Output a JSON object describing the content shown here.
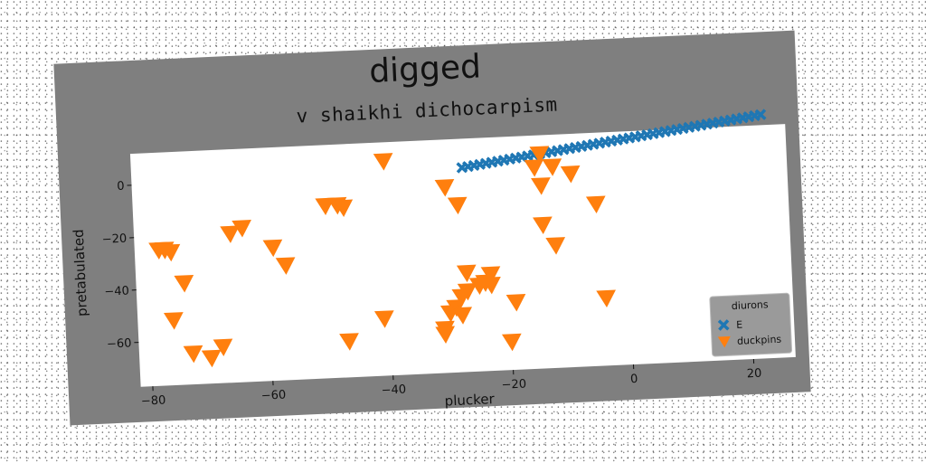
{
  "figure": {
    "suptitle": "digged",
    "background": "#7f7f7f"
  },
  "chart_data": {
    "type": "scatter",
    "title": "v shaikhi dichocarpism",
    "xlabel": "plucker",
    "ylabel": "pretabulated",
    "xlim": [
      -82,
      27
    ],
    "ylim": [
      -77,
      12
    ],
    "xticks": [
      -80,
      -60,
      -40,
      -20,
      0,
      20
    ],
    "yticks": [
      0,
      -20,
      -40,
      -60
    ],
    "grid": false,
    "legend": {
      "title": "diurons",
      "placement": "lower-right"
    },
    "series": [
      {
        "name": "E",
        "marker": "x",
        "color": "#1f77b4",
        "x": [
          -27,
          -26,
          -25,
          -24,
          -23,
          -22,
          -21,
          -20,
          -19,
          -18,
          -17,
          -16,
          -15,
          -14,
          -13,
          -12,
          -11,
          -10,
          -9,
          -8,
          -7,
          -6,
          -5,
          -4,
          -3,
          -2,
          -1,
          0,
          1,
          2,
          3,
          4,
          5,
          6,
          7,
          8,
          9,
          10,
          11,
          12,
          13,
          14,
          15,
          16,
          17,
          18,
          19,
          20,
          21,
          22,
          23
        ],
        "y": [
          1.0,
          1.3,
          1.6,
          1.9,
          2.2,
          2.5,
          2.8,
          3.1,
          3.4,
          3.7,
          4.0,
          4.3,
          4.6,
          4.9,
          5.2,
          5.5,
          5.8,
          6.1,
          6.4,
          6.7,
          7.0,
          7.3,
          7.6,
          7.9,
          8.2,
          8.5,
          8.8,
          9.1,
          9.4,
          9.7,
          10.0,
          10.3,
          10.6,
          10.9,
          11.2,
          11.5,
          11.8,
          12.1,
          12.4,
          12.7,
          13.0,
          13.3,
          13.6,
          13.9,
          14.2,
          14.5,
          14.8,
          15.1,
          15.4,
          15.7,
          16.0
        ]
      },
      {
        "name": "duckpins",
        "marker": "v",
        "color": "#ff7f0e",
        "x": [
          -78,
          -77,
          -76,
          -74,
          -76,
          -70,
          -73,
          -68,
          -64,
          -59,
          -57,
          -50,
          -48,
          -47,
          -41,
          -40,
          -30,
          -28,
          -27,
          -25,
          -23,
          -20,
          -15,
          -14,
          -14,
          -12,
          -9,
          -5,
          -4,
          -14,
          -12,
          -24,
          -23,
          -27,
          -28,
          -29,
          -30,
          -31,
          -31,
          -28,
          -19,
          -47,
          -66
        ],
        "y": [
          -25,
          -25,
          -26,
          -38,
          -52,
          -67,
          -65,
          -63,
          -18,
          -26,
          -33,
          -11,
          -11,
          -12,
          -55,
          5,
          -6,
          -13,
          -39,
          -44,
          -40,
          -66,
          0,
          5,
          -7,
          0,
          -3,
          -15,
          -51,
          -22,
          -30,
          -43,
          -44,
          -46,
          -48,
          -52,
          -54,
          -60,
          -62,
          -55,
          -51,
          -63,
          -20
        ]
      }
    ]
  }
}
